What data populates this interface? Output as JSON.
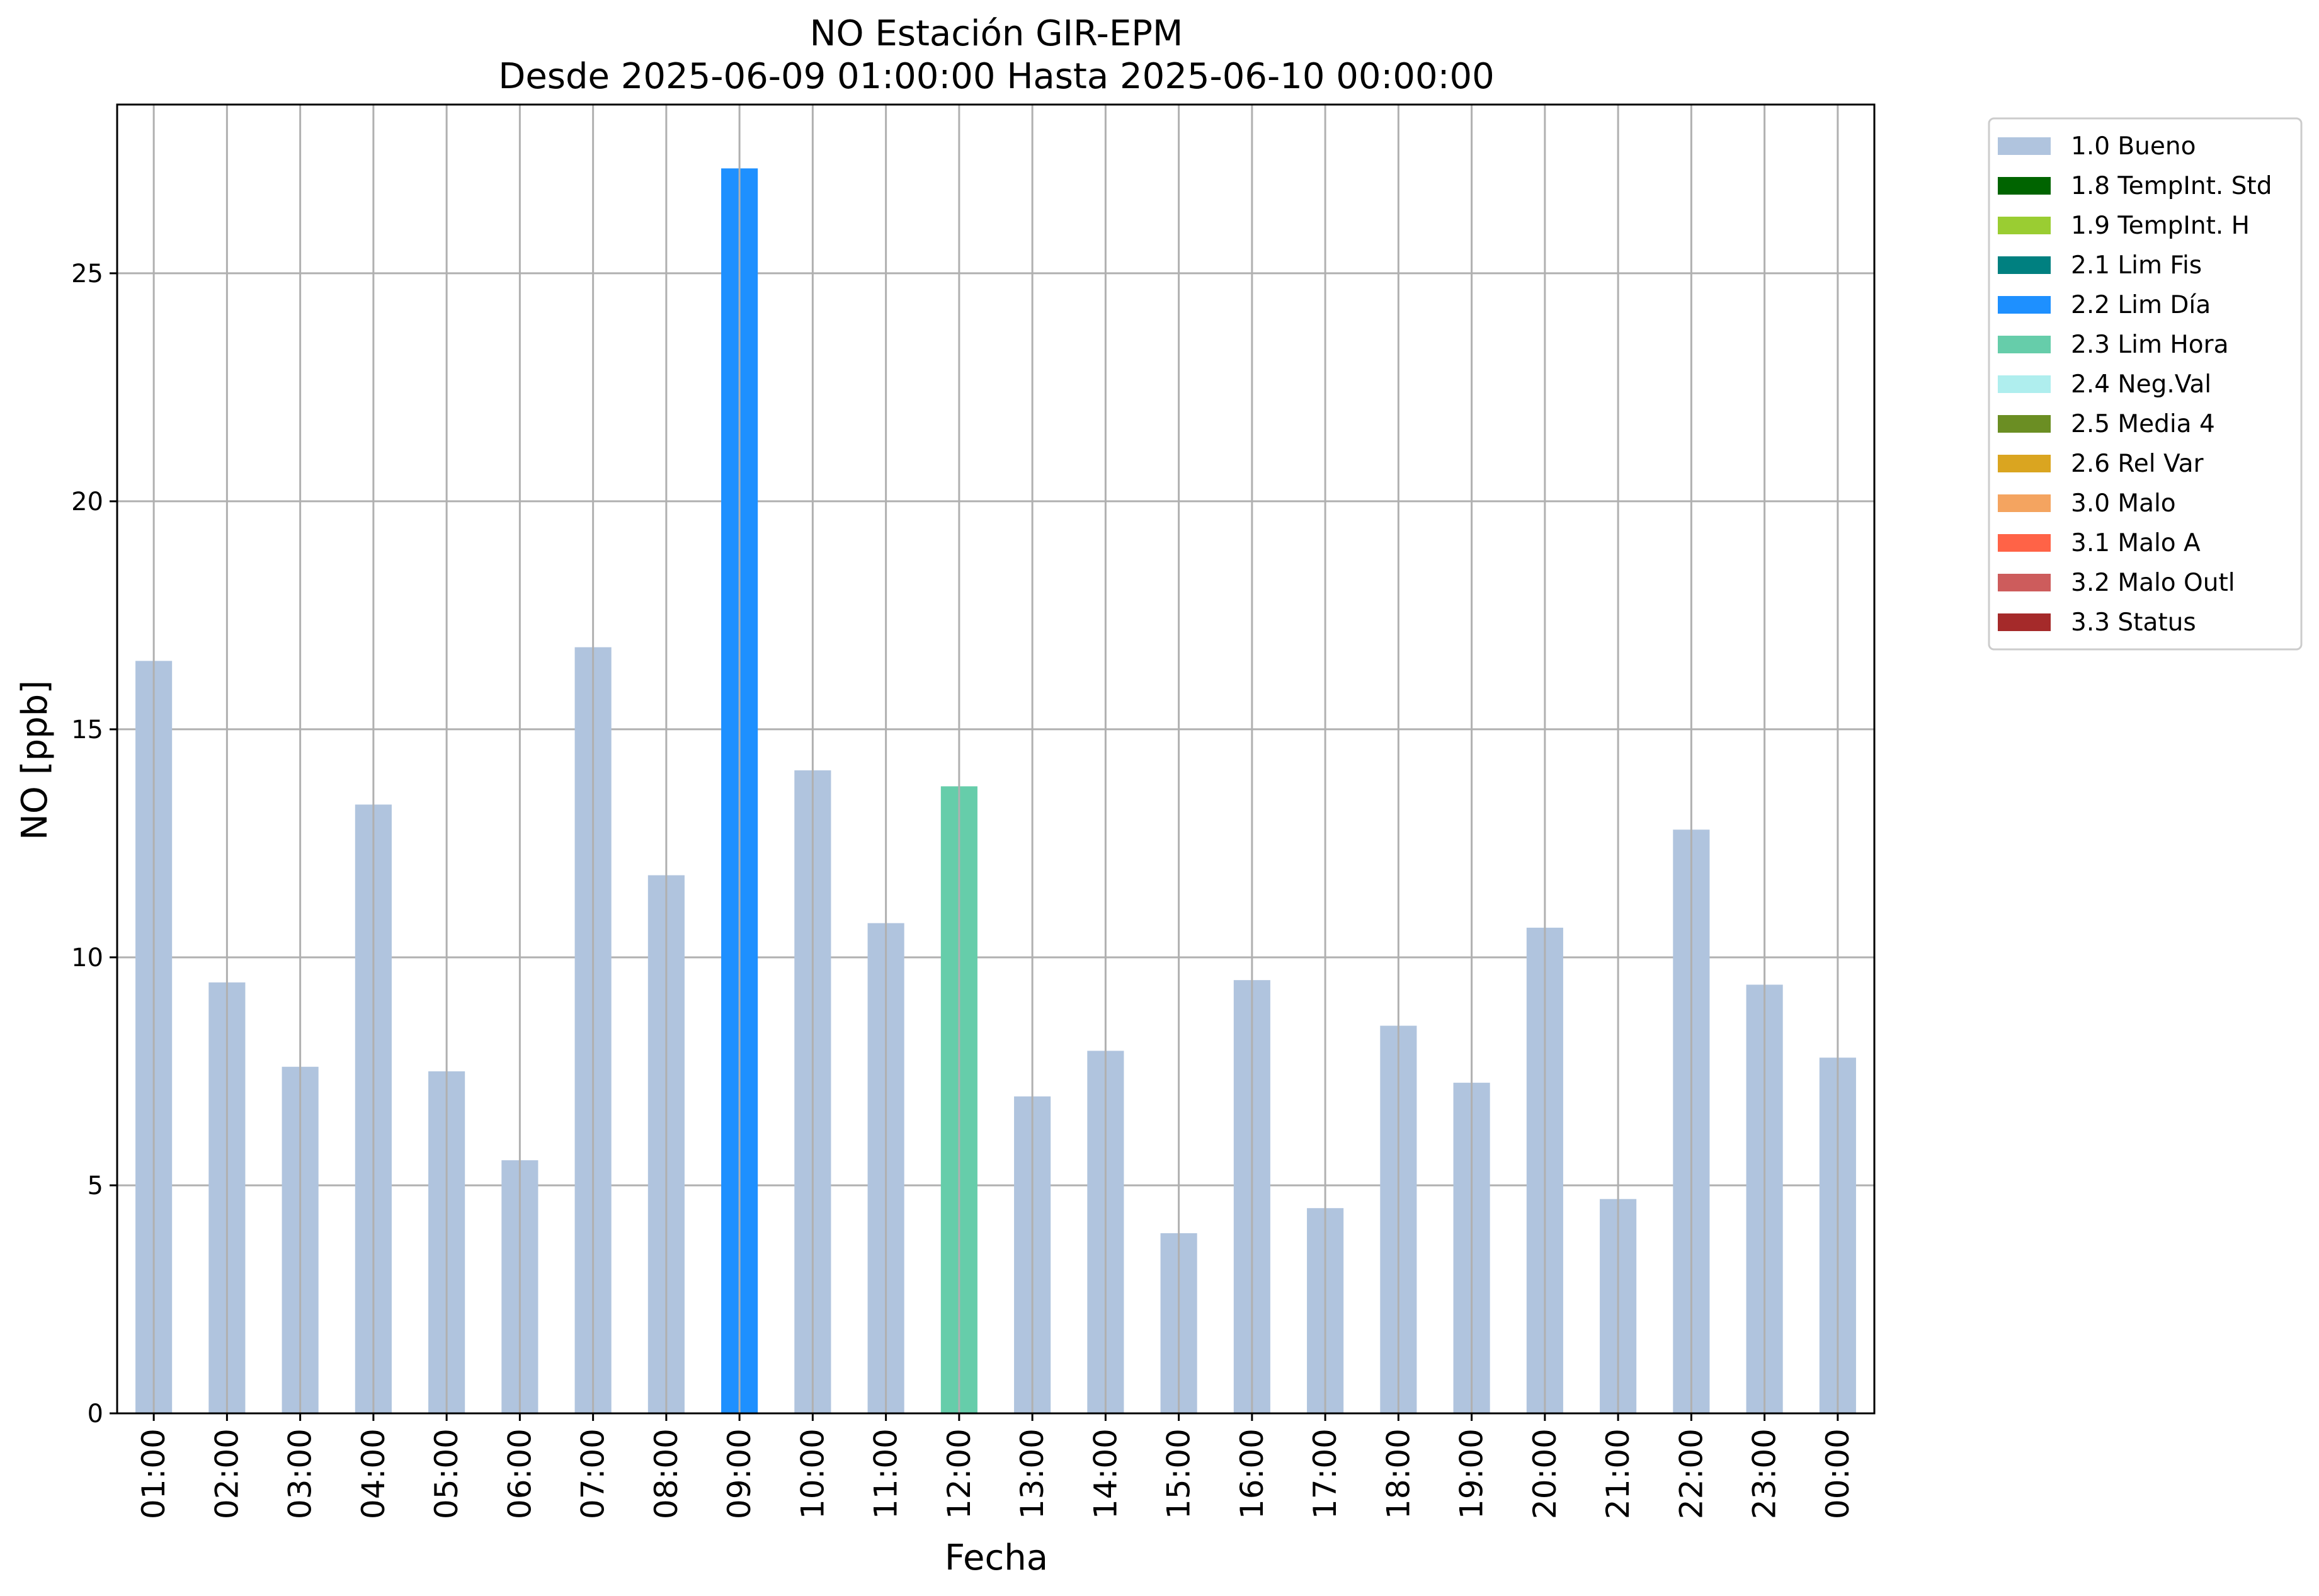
{
  "chart_data": {
    "type": "bar",
    "title": "NO Estación GIR-EPM",
    "subtitle": "Desde 2025-06-09 01:00:00 Hasta 2025-06-10 00:00:00",
    "xlabel": "Fecha",
    "ylabel": "NO [ppb]",
    "ylim": [
      0,
      28.7
    ],
    "yticks": [
      0,
      5,
      10,
      15,
      20,
      25
    ],
    "grid": true,
    "legend_position": "outside-top-right",
    "categories": [
      "01:00",
      "02:00",
      "03:00",
      "04:00",
      "05:00",
      "06:00",
      "07:00",
      "08:00",
      "09:00",
      "10:00",
      "11:00",
      "12:00",
      "13:00",
      "14:00",
      "15:00",
      "16:00",
      "17:00",
      "18:00",
      "19:00",
      "20:00",
      "21:00",
      "22:00",
      "23:00",
      "00:00"
    ],
    "values": [
      16.5,
      9.45,
      7.6,
      13.35,
      7.5,
      5.55,
      16.8,
      11.8,
      27.3,
      14.1,
      10.75,
      13.75,
      6.95,
      7.95,
      3.95,
      9.5,
      4.5,
      8.5,
      7.25,
      10.65,
      4.7,
      12.8,
      9.4,
      7.8
    ],
    "flags": [
      "1.0 Bueno",
      "1.0 Bueno",
      "1.0 Bueno",
      "1.0 Bueno",
      "1.0 Bueno",
      "1.0 Bueno",
      "1.0 Bueno",
      "1.0 Bueno",
      "2.2 Lim Día",
      "1.0 Bueno",
      "1.0 Bueno",
      "2.3 Lim Hora",
      "1.0 Bueno",
      "1.0 Bueno",
      "1.0 Bueno",
      "1.0 Bueno",
      "1.0 Bueno",
      "1.0 Bueno",
      "1.0 Bueno",
      "1.0 Bueno",
      "1.0 Bueno",
      "1.0 Bueno",
      "1.0 Bueno",
      "1.0 Bueno"
    ],
    "legend": [
      {
        "label": "1.0 Bueno",
        "color": "#b0c4de"
      },
      {
        "label": "1.8 TempInt. Std",
        "color": "#006400"
      },
      {
        "label": "1.9 TempInt. H",
        "color": "#9acd32"
      },
      {
        "label": "2.1 Lim Fis",
        "color": "#008080"
      },
      {
        "label": "2.2 Lim Día",
        "color": "#1e90ff"
      },
      {
        "label": "2.3 Lim Hora",
        "color": "#66cdaa"
      },
      {
        "label": "2.4 Neg.Val",
        "color": "#afeeee"
      },
      {
        "label": "2.5 Media 4",
        "color": "#6b8e23"
      },
      {
        "label": "2.6 Rel Var",
        "color": "#daa520"
      },
      {
        "label": "3.0 Malo",
        "color": "#f4a460"
      },
      {
        "label": "3.1 Malo A",
        "color": "#ff6347"
      },
      {
        "label": "3.2 Malo Outl",
        "color": "#cd5c5c"
      },
      {
        "label": "3.3 Status",
        "color": "#a52a2a"
      }
    ]
  }
}
